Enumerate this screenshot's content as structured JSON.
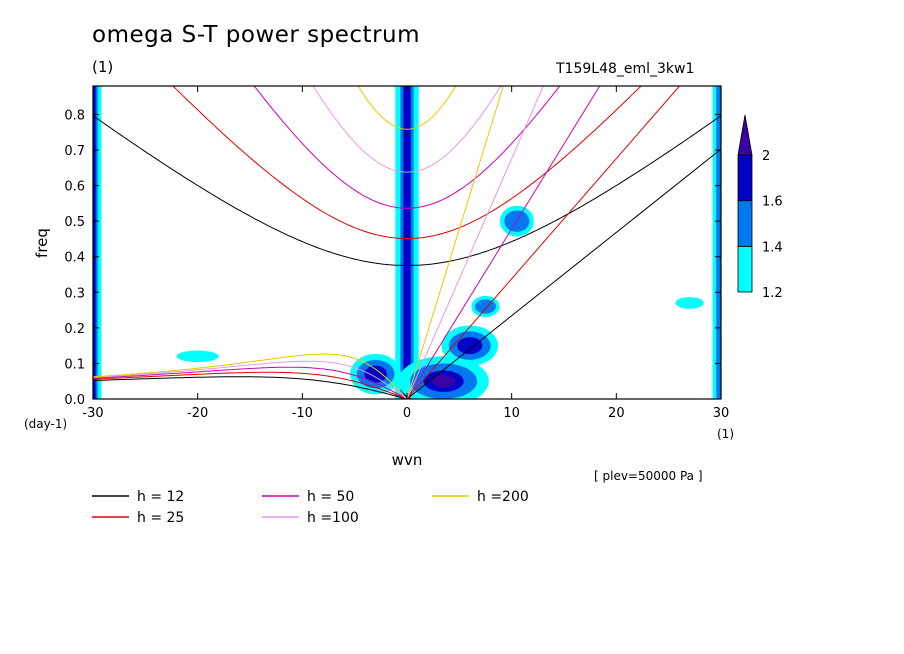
{
  "title": "omega S-T power spectrum",
  "subtitle": "(1)",
  "run_label": "T159L48_eml_3kw1",
  "plev_label": "[ plev=50000 Pa ]",
  "colors": {
    "c12": "#000000",
    "c25": "#e00000",
    "c50": "#d000b0",
    "c100": "#e29ae2",
    "c200": "#e8c800"
  },
  "chart_data": {
    "type": "heatmap",
    "title": "omega S-T power spectrum",
    "xlabel": "wvn",
    "ylabel": "freq",
    "x_unit": "(1)",
    "y_unit": "(day-1)",
    "xlim": [
      -30,
      30
    ],
    "ylim": [
      0,
      0.88
    ],
    "x_ticks": [
      -30,
      -20,
      -10,
      0,
      10,
      20,
      30
    ],
    "x_tick_labels": [
      "-30",
      "-20",
      "-10",
      "0",
      "10",
      "20",
      "30"
    ],
    "y_ticks": [
      0,
      0.1,
      0.2,
      0.3,
      0.4,
      0.5,
      0.6,
      0.7,
      0.8
    ],
    "y_tick_labels": [
      "0.0",
      "0.1",
      "0.2",
      "0.3",
      "0.4",
      "0.5",
      "0.6",
      "0.7",
      "0.8"
    ],
    "colorbar": {
      "levels": [
        1.2,
        1.4,
        1.6,
        2
      ],
      "labels": [
        "1.2",
        "1.4",
        "1.6",
        "2"
      ],
      "colors": [
        "#00ffff",
        "#0078f0",
        "#0000c8",
        "#3c00a8"
      ]
    },
    "shading_regions": [
      {
        "kind": "vband",
        "x": -30,
        "width": 0.5,
        "ymin": 0.0,
        "ymax": 0.88,
        "level": 1.6
      },
      {
        "kind": "vband",
        "x": 0,
        "width": 0.7,
        "ymin": 0.0,
        "ymax": 0.88,
        "level": 1.6
      },
      {
        "kind": "vband",
        "x": 30,
        "width": 0.5,
        "ymin": 0.0,
        "ymax": 0.88,
        "level": 1.4
      },
      {
        "kind": "blob",
        "x": 3.5,
        "y": 0.05,
        "rx": 3.2,
        "ry": 0.05,
        "level": 2
      },
      {
        "kind": "blob",
        "x": -3.0,
        "y": 0.07,
        "rx": 1.8,
        "ry": 0.04,
        "level": 1.6
      },
      {
        "kind": "blob",
        "x": 6.0,
        "y": 0.15,
        "rx": 2.0,
        "ry": 0.04,
        "level": 1.6
      },
      {
        "kind": "blob",
        "x": 7.5,
        "y": 0.26,
        "rx": 1.0,
        "ry": 0.02,
        "level": 1.4
      },
      {
        "kind": "blob",
        "x": 10.5,
        "y": 0.5,
        "rx": 1.2,
        "ry": 0.03,
        "level": 1.4
      },
      {
        "kind": "blob",
        "x": -20.0,
        "y": 0.12,
        "rx": 1.5,
        "ry": 0.01,
        "level": 1.2
      },
      {
        "kind": "blob",
        "x": 27.0,
        "y": 0.27,
        "rx": 1.0,
        "ry": 0.01,
        "level": 1.2
      }
    ],
    "dispersion_curves": [
      {
        "name": "h = 12",
        "color": "#000000",
        "h": 12
      },
      {
        "name": "h = 25",
        "color": "#e00000",
        "h": 25
      },
      {
        "name": "h = 50",
        "color": "#d000b0",
        "h": 50
      },
      {
        "name": "h =100",
        "color": "#e29ae2",
        "h": 100
      },
      {
        "name": "h =200",
        "color": "#e8c800",
        "h": 200
      }
    ]
  }
}
